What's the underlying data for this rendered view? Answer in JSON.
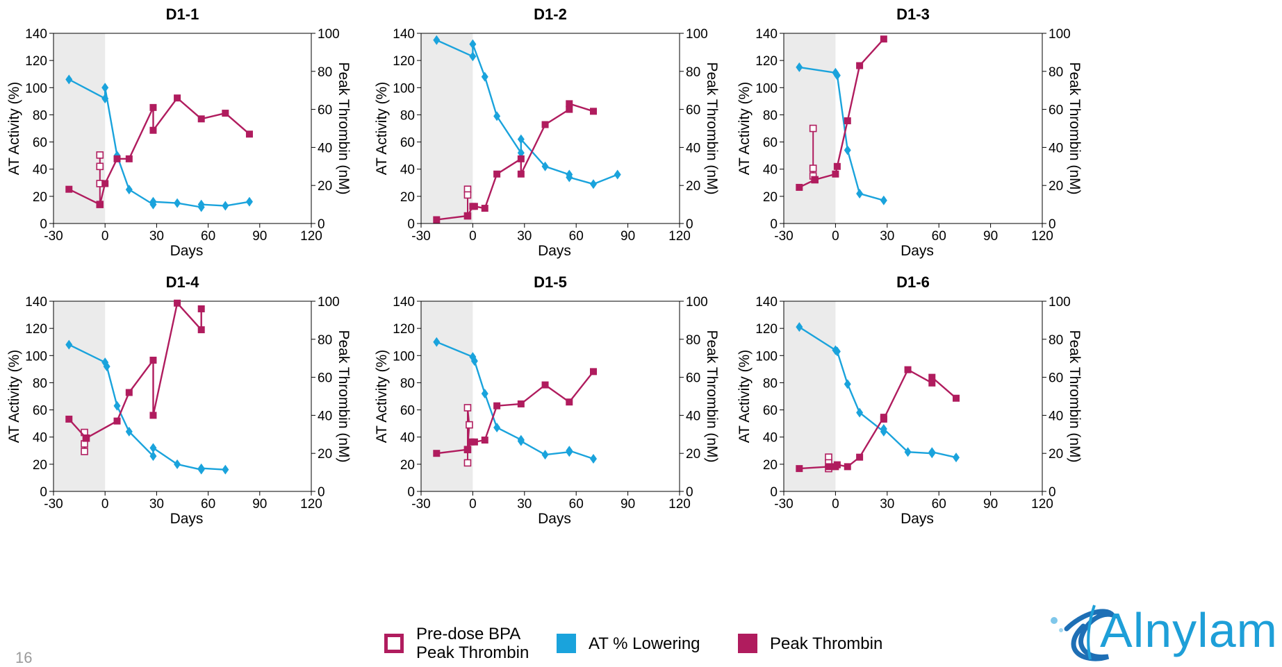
{
  "page": {
    "number": "16"
  },
  "legend": {
    "items": [
      {
        "label_line1": "Pre-dose BPA",
        "label_line2": "Peak Thrombin",
        "color": "#b01c5e",
        "marker": "open-square"
      },
      {
        "label": "AT % Lowering",
        "color": "#1aa3dc",
        "marker": "filled-square"
      },
      {
        "label": "Peak Thrombin",
        "color": "#b01c5e",
        "marker": "filled-square"
      }
    ]
  },
  "logo": {
    "text": "Alnylam"
  },
  "colors": {
    "at": "#1aa3dc",
    "thrombin": "#b01c5e",
    "shade": "#ebebeb"
  },
  "chart_data": [
    {
      "type": "line",
      "title": "D1-1",
      "xlabel": "Days",
      "ylabel": "AT Activity (%)",
      "y2label": "Peak Thrombin (nM)",
      "xlim": [
        -30,
        120
      ],
      "ylim": [
        0,
        140
      ],
      "y2lim": [
        0,
        100
      ],
      "xticks": [
        -30,
        0,
        30,
        60,
        90,
        120
      ],
      "yticks": [
        0,
        20,
        40,
        60,
        80,
        100,
        120,
        140
      ],
      "y2ticks": [
        0,
        20,
        40,
        60,
        80,
        100
      ],
      "shaded_region": [
        -30,
        0
      ],
      "series": [
        {
          "name": "AT % Lowering",
          "axis": "left",
          "marker": "diamond",
          "x": [
            -21,
            0,
            0,
            7,
            14,
            28,
            28,
            42,
            56,
            56,
            70,
            84
          ],
          "y": [
            106,
            92,
            100,
            50,
            25,
            14,
            16,
            15,
            12,
            14,
            13,
            16
          ]
        },
        {
          "name": "Pre-dose BPA Peak Thrombin",
          "axis": "right",
          "marker": "open-square",
          "x": [
            -3,
            -3,
            -3,
            -3
          ],
          "y": [
            10,
            36,
            30,
            21
          ]
        },
        {
          "name": "Peak Thrombin",
          "axis": "right",
          "marker": "square",
          "x": [
            -21,
            -3,
            0,
            7,
            14,
            28,
            28,
            42,
            56,
            70,
            84
          ],
          "y": [
            18,
            10,
            21,
            34,
            34,
            61,
            49,
            66,
            55,
            58,
            47
          ]
        }
      ]
    },
    {
      "type": "line",
      "title": "D1-2",
      "xlabel": "Days",
      "ylabel": "AT Activity (%)",
      "y2label": "Peak Thrombin (nM)",
      "xlim": [
        -30,
        120
      ],
      "ylim": [
        0,
        140
      ],
      "y2lim": [
        0,
        100
      ],
      "xticks": [
        -30,
        0,
        30,
        60,
        90,
        120
      ],
      "yticks": [
        0,
        20,
        40,
        60,
        80,
        100,
        120,
        140
      ],
      "y2ticks": [
        0,
        20,
        40,
        60,
        80,
        100
      ],
      "shaded_region": [
        -30,
        0
      ],
      "series": [
        {
          "name": "AT % Lowering",
          "axis": "left",
          "marker": "diamond",
          "x": [
            -21,
            0,
            0,
            7,
            14,
            28,
            28,
            42,
            56,
            56,
            70,
            84
          ],
          "y": [
            135,
            123,
            132,
            108,
            79,
            52,
            62,
            42,
            36,
            34,
            29,
            36
          ]
        },
        {
          "name": "Pre-dose BPA Peak Thrombin",
          "axis": "right",
          "marker": "open-square",
          "x": [
            -3,
            -3,
            -3
          ],
          "y": [
            4,
            18,
            15
          ]
        },
        {
          "name": "Peak Thrombin",
          "axis": "right",
          "marker": "square",
          "x": [
            -21,
            -3,
            0,
            1,
            7,
            14,
            28,
            28,
            42,
            56,
            56,
            70
          ],
          "y": [
            2,
            4,
            9,
            9,
            8,
            26,
            34,
            26,
            52,
            60,
            63,
            59
          ]
        }
      ]
    },
    {
      "type": "line",
      "title": "D1-3",
      "xlabel": "Days",
      "ylabel": "AT Activity (%)",
      "y2label": "Peak Thrombin (nM)",
      "xlim": [
        -30,
        120
      ],
      "ylim": [
        0,
        140
      ],
      "y2lim": [
        0,
        100
      ],
      "xticks": [
        -30,
        0,
        30,
        60,
        90,
        120
      ],
      "yticks": [
        0,
        20,
        40,
        60,
        80,
        100,
        120,
        140
      ],
      "y2ticks": [
        0,
        20,
        40,
        60,
        80,
        100
      ],
      "shaded_region": [
        -30,
        0
      ],
      "series": [
        {
          "name": "AT % Lowering",
          "axis": "left",
          "marker": "diamond",
          "x": [
            -21,
            0,
            1,
            7,
            14,
            28
          ],
          "y": [
            115,
            111,
            109,
            54,
            22,
            17
          ]
        },
        {
          "name": "Pre-dose BPA Peak Thrombin",
          "axis": "right",
          "marker": "open-square",
          "x": [
            -13,
            -13,
            -13,
            -12
          ],
          "y": [
            50,
            29,
            25,
            23
          ]
        },
        {
          "name": "Peak Thrombin",
          "axis": "right",
          "marker": "square",
          "x": [
            -21,
            -12,
            0,
            1,
            7,
            14,
            28
          ],
          "y": [
            19,
            23,
            26,
            30,
            54,
            83,
            97
          ]
        }
      ]
    },
    {
      "type": "line",
      "title": "D1-4",
      "xlabel": "Days",
      "ylabel": "AT Activity (%)",
      "y2label": "Peak Thrombin (nM)",
      "xlim": [
        -30,
        120
      ],
      "ylim": [
        0,
        140
      ],
      "y2lim": [
        0,
        100
      ],
      "xticks": [
        -30,
        0,
        30,
        60,
        90,
        120
      ],
      "yticks": [
        0,
        20,
        40,
        60,
        80,
        100,
        120,
        140
      ],
      "y2ticks": [
        0,
        20,
        40,
        60,
        80,
        100
      ],
      "shaded_region": [
        -30,
        0
      ],
      "series": [
        {
          "name": "AT % Lowering",
          "axis": "left",
          "marker": "diamond",
          "x": [
            -21,
            0,
            1,
            7,
            14,
            28,
            28,
            42,
            56,
            56,
            70
          ],
          "y": [
            108,
            95,
            92,
            63,
            44,
            26,
            32,
            20,
            16,
            17,
            16
          ]
        },
        {
          "name": "Pre-dose BPA Peak Thrombin",
          "axis": "right",
          "marker": "open-square",
          "x": [
            -12,
            -12,
            -12,
            -11
          ],
          "y": [
            31,
            25,
            21,
            28
          ]
        },
        {
          "name": "Peak Thrombin",
          "axis": "right",
          "marker": "square",
          "x": [
            -21,
            -11,
            7,
            14,
            28,
            28,
            42,
            56,
            56
          ],
          "y": [
            38,
            28,
            37,
            52,
            69,
            40,
            99,
            85,
            96
          ]
        }
      ]
    },
    {
      "type": "line",
      "title": "D1-5",
      "xlabel": "Days",
      "ylabel": "AT Activity (%)",
      "y2label": "Peak Thrombin (nM)",
      "xlim": [
        -30,
        120
      ],
      "ylim": [
        0,
        140
      ],
      "y2lim": [
        0,
        100
      ],
      "xticks": [
        -30,
        0,
        30,
        60,
        90,
        120
      ],
      "yticks": [
        0,
        20,
        40,
        60,
        80,
        100,
        120,
        140
      ],
      "y2ticks": [
        0,
        20,
        40,
        60,
        80,
        100
      ],
      "shaded_region": [
        -30,
        0
      ],
      "series": [
        {
          "name": "AT % Lowering",
          "axis": "left",
          "marker": "diamond",
          "x": [
            -21,
            0,
            1,
            7,
            14,
            28,
            28,
            42,
            56,
            56,
            70
          ],
          "y": [
            110,
            99,
            96,
            72,
            47,
            38,
            37,
            27,
            29,
            30,
            24
          ]
        },
        {
          "name": "Pre-dose BPA Peak Thrombin",
          "axis": "right",
          "marker": "open-square",
          "x": [
            -3,
            -3,
            -2,
            -3
          ],
          "y": [
            15,
            44,
            35,
            22
          ]
        },
        {
          "name": "Peak Thrombin",
          "axis": "right",
          "marker": "square",
          "x": [
            -21,
            -3,
            -1,
            1,
            7,
            14,
            28,
            42,
            56,
            70
          ],
          "y": [
            20,
            22,
            26,
            26,
            27,
            45,
            46,
            56,
            47,
            63
          ]
        }
      ]
    },
    {
      "type": "line",
      "title": "D1-6",
      "xlabel": "Days",
      "ylabel": "AT Activity (%)",
      "y2label": "Peak Thrombin (nM)",
      "xlim": [
        -30,
        120
      ],
      "ylim": [
        0,
        140
      ],
      "y2lim": [
        0,
        100
      ],
      "xticks": [
        -30,
        0,
        30,
        60,
        90,
        120
      ],
      "yticks": [
        0,
        20,
        40,
        60,
        80,
        100,
        120,
        140
      ],
      "y2ticks": [
        0,
        20,
        40,
        60,
        80,
        100
      ],
      "shaded_region": [
        -30,
        0
      ],
      "series": [
        {
          "name": "AT % Lowering",
          "axis": "left",
          "marker": "diamond",
          "x": [
            -21,
            0,
            1,
            7,
            14,
            28,
            28,
            42,
            56,
            56,
            70
          ],
          "y": [
            121,
            104,
            103,
            79,
            58,
            44,
            46,
            29,
            28,
            29,
            25
          ]
        },
        {
          "name": "Pre-dose BPA Peak Thrombin",
          "axis": "right",
          "marker": "open-square",
          "x": [
            -4,
            -4,
            -4
          ],
          "y": [
            18,
            15,
            12
          ]
        },
        {
          "name": "Peak Thrombin",
          "axis": "right",
          "marker": "square",
          "x": [
            -21,
            -4,
            0,
            1,
            7,
            14,
            28,
            28,
            42,
            56,
            56,
            70
          ],
          "y": [
            12,
            13,
            13,
            14,
            13,
            18,
            39,
            38,
            64,
            57,
            60,
            49
          ]
        }
      ]
    }
  ]
}
